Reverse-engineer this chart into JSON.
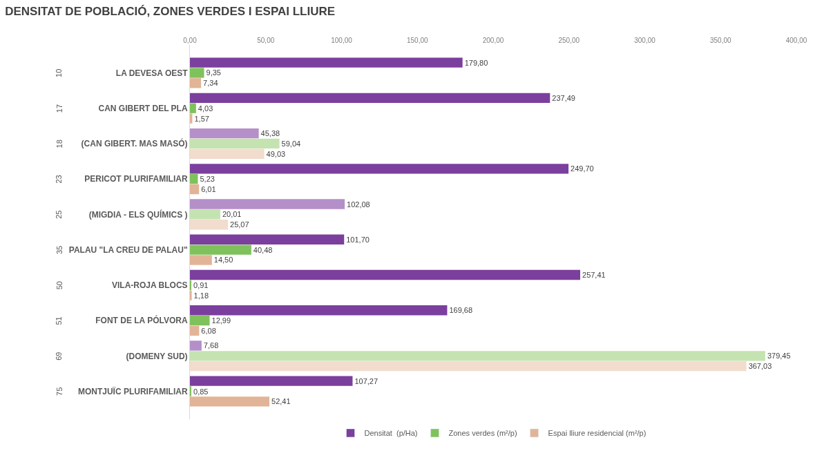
{
  "chart_data": {
    "type": "bar",
    "orientation": "horizontal",
    "title": "DENSITAT DE POBLACIÓ, ZONES VERDES I ESPAI LLIURE",
    "categories": [
      "LA DEVESA OEST",
      "CAN GIBERT DEL PLA",
      "(CAN GIBERT. MAS MASÓ)",
      "PERICOT PLURIFAMILIAR",
      "(MIGDIA - ELS QUÍMICS )",
      "PALAU \"LA CREU DE PALAU\"",
      "VILA-ROJA BLOCS",
      "FONT DE LA PÓLVORA",
      "(DOMENY SUD)",
      "MONTJUÏC PLURIFAMILIAR"
    ],
    "annotations": [
      "10",
      "17",
      "18",
      "23",
      "25",
      "35",
      "50",
      "51",
      "69",
      "75"
    ],
    "series": [
      {
        "name": "Densitat  (p/Ha)",
        "color": "#7b3f9e",
        "colors": [
          "#7b3f9e",
          "#7b3f9e",
          "#b48fc8",
          "#7b3f9e",
          "#b48fc8",
          "#7b3f9e",
          "#7b3f9e",
          "#7b3f9e",
          "#b48fc8",
          "#7b3f9e"
        ],
        "values": [
          179.8,
          237.49,
          45.38,
          249.7,
          102.08,
          101.7,
          257.41,
          169.68,
          7.68,
          107.27
        ],
        "value_labels": [
          "179,80",
          "237,49",
          "45,38",
          "249,70",
          "102,08",
          "101,70",
          "257,41",
          "169,68",
          "7,68",
          "107,27"
        ]
      },
      {
        "name": "Zones verdes (m²/p)",
        "color": "#7fc25c",
        "colors": [
          "#7fc25c",
          "#7fc25c",
          "#c4e3b0",
          "#7fc25c",
          "#c4e3b0",
          "#7fc25c",
          "#7fc25c",
          "#7fc25c",
          "#c4e3b0",
          "#7fc25c"
        ],
        "values": [
          9.35,
          4.03,
          59.04,
          5.23,
          20.01,
          40.48,
          0.91,
          12.99,
          379.45,
          0.85
        ],
        "value_labels": [
          "9,35",
          "4,03",
          "59,04",
          "5,23",
          "20,01",
          "40,48",
          "0,91",
          "12,99",
          "379,45",
          "0,85"
        ]
      },
      {
        "name": "Espai lliure residencial (m²/p)",
        "color": "#e2b497",
        "colors": [
          "#e2b497",
          "#e2b497",
          "#f2dccd",
          "#e2b497",
          "#f2dccd",
          "#e2b497",
          "#e2b497",
          "#e2b497",
          "#f2dccd",
          "#e2b497"
        ],
        "values": [
          7.34,
          1.57,
          49.03,
          6.01,
          25.07,
          14.5,
          1.18,
          6.08,
          367.03,
          52.41
        ],
        "value_labels": [
          "7,34",
          "1,57",
          "49,03",
          "6,01",
          "25,07",
          "14,50",
          "1,18",
          "6,08",
          "367,03",
          "52,41"
        ]
      }
    ],
    "xlim": [
      0,
      400
    ],
    "xticks": [
      {
        "value": 0,
        "label": "0,00"
      },
      {
        "value": 50,
        "label": "50,00"
      },
      {
        "value": 100,
        "label": "100,00"
      },
      {
        "value": 150,
        "label": "150,00"
      },
      {
        "value": 200,
        "label": "200,00"
      },
      {
        "value": 250,
        "label": "250,00"
      },
      {
        "value": 300,
        "label": "300,00"
      },
      {
        "value": 350,
        "label": "350,00"
      },
      {
        "value": 400,
        "label": "400,00"
      }
    ],
    "legend": "bottom",
    "grid": false
  }
}
